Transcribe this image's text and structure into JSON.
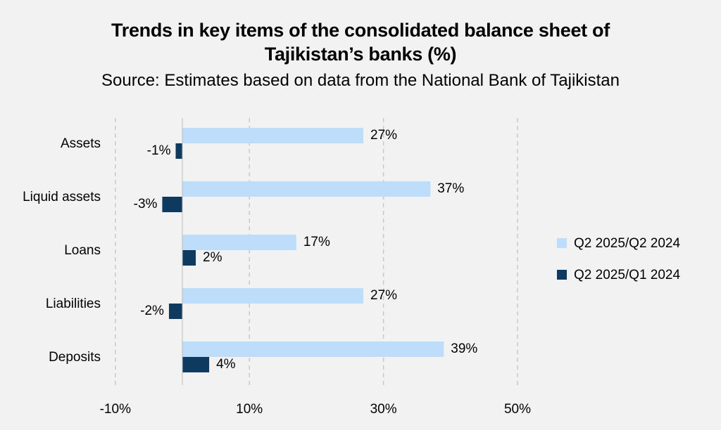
{
  "header": {
    "title_line1": "Trends in key items of the consolidated balance sheet of",
    "title_line2": "Tajikistan’s banks (%)",
    "subtitle": "Source: Estimates based on data from the National Bank of Tajikistan"
  },
  "chart_data": {
    "type": "bar",
    "orientation": "horizontal",
    "title": "Trends in key items of the consolidated balance sheet of Tajikistan’s banks (%)",
    "subtitle": "Source: Estimates based on data from the National Bank of Tajikistan",
    "categories": [
      "Assets",
      "Liquid assets",
      "Loans",
      "Liabilities",
      "Deposits"
    ],
    "series": [
      {
        "name": "Q2 2025/Q2 2024",
        "color": "#bdddfb",
        "values": [
          27,
          37,
          17,
          27,
          39
        ],
        "labels": [
          "27%",
          "37%",
          "17%",
          "27%",
          "39%"
        ]
      },
      {
        "name": "Q2 2025/Q1 2024",
        "color": "#0f3a60",
        "values": [
          -1,
          -3,
          2,
          -2,
          4
        ],
        "labels": [
          "-1%",
          "-3%",
          "2%",
          "-2%",
          "4%"
        ]
      }
    ],
    "xlim": [
      -10,
      60
    ],
    "x_ticks": [
      -10,
      10,
      30,
      50
    ],
    "x_tick_labels": [
      "-10%",
      "10%",
      "30%",
      "50%"
    ],
    "grid": "vertical dashed",
    "legend_position": "right"
  }
}
